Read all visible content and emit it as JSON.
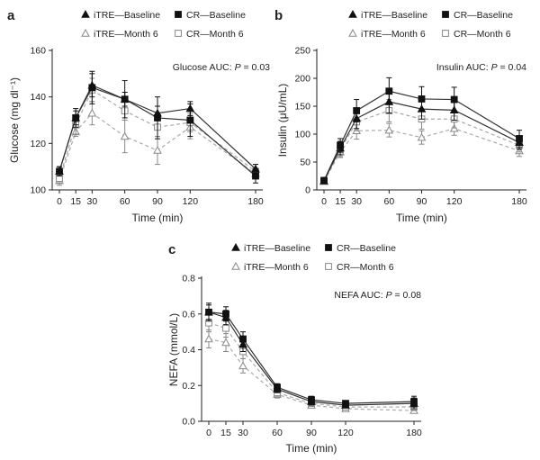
{
  "chart_data": [
    {
      "type": "line",
      "panel": "a",
      "auc_prefix": "Glucose AUC: ",
      "auc_p_symbol": "P",
      "auc_p_value": " = 0.03",
      "ylabel": "Glucose (mg dl⁻¹)",
      "xlabel": "Time (min)",
      "x": [
        0,
        15,
        30,
        60,
        90,
        120,
        180
      ],
      "ylim": [
        100,
        160
      ],
      "yticks": [
        100,
        120,
        140,
        160
      ],
      "legend": {
        "iTRE_baseline": "iTRE—Baseline",
        "CR_baseline": "CR—Baseline",
        "iTRE_month6": "iTRE—Month 6",
        "CR_month6": "CR—Month 6"
      },
      "series": [
        {
          "name": "iTRE—Baseline",
          "values": [
            108,
            131,
            145,
            139,
            133,
            135,
            109
          ],
          "err": [
            2,
            3,
            5,
            3,
            3,
            3,
            2
          ]
        },
        {
          "name": "CR—Baseline",
          "values": [
            108,
            131,
            144,
            139,
            131,
            130,
            106
          ],
          "err": [
            2,
            4,
            7,
            8,
            9,
            7,
            3
          ]
        },
        {
          "name": "iTRE—Month 6",
          "values": [
            104,
            125,
            133,
            123,
            117,
            127,
            107
          ],
          "err": [
            2,
            2,
            5,
            7,
            6,
            5,
            2
          ]
        },
        {
          "name": "CR—Month 6",
          "values": [
            105,
            128,
            143,
            134,
            127,
            129,
            108
          ],
          "err": [
            2,
            4,
            5,
            4,
            4,
            4,
            3
          ]
        }
      ]
    },
    {
      "type": "line",
      "panel": "b",
      "auc_prefix": "Insulin AUC: ",
      "auc_p_symbol": "P",
      "auc_p_value": " = 0.04",
      "ylabel": "Insulin (μU/mL)",
      "xlabel": "Time (min)",
      "x": [
        0,
        15,
        30,
        60,
        90,
        120,
        180
      ],
      "ylim": [
        0,
        250
      ],
      "yticks": [
        0,
        50,
        100,
        150,
        200,
        250
      ],
      "legend": {
        "iTRE_baseline": "iTRE—Baseline",
        "CR_baseline": "CR—Baseline",
        "iTRE_month6": "iTRE—Month 6",
        "CR_month6": "CR—Month 6"
      },
      "series": [
        {
          "name": "iTRE—Baseline",
          "values": [
            16,
            75,
            128,
            158,
            145,
            143,
            85
          ],
          "err": [
            3,
            12,
            18,
            20,
            18,
            18,
            12
          ]
        },
        {
          "name": "CR—Baseline",
          "values": [
            17,
            80,
            142,
            177,
            163,
            162,
            92
          ],
          "err": [
            3,
            12,
            20,
            24,
            22,
            22,
            15
          ]
        },
        {
          "name": "iTRE—Month 6",
          "values": [
            15,
            68,
            106,
            107,
            94,
            110,
            70
          ],
          "err": [
            3,
            10,
            15,
            12,
            12,
            12,
            10
          ]
        },
        {
          "name": "CR—Month 6",
          "values": [
            16,
            72,
            122,
            142,
            127,
            127,
            80
          ],
          "err": [
            3,
            12,
            16,
            20,
            18,
            16,
            12
          ]
        }
      ]
    },
    {
      "type": "line",
      "panel": "c",
      "auc_prefix": "NEFA AUC: ",
      "auc_p_symbol": "P",
      "auc_p_value": " = 0.08",
      "ylabel": "NEFA (mmol/L)",
      "xlabel": "Time (min)",
      "x": [
        0,
        15,
        30,
        60,
        90,
        120,
        180
      ],
      "ylim": [
        0,
        0.8
      ],
      "yticks": [
        0,
        0.2,
        0.4,
        0.6,
        0.8
      ],
      "legend": {
        "iTRE_baseline": "iTRE—Baseline",
        "CR_baseline": "CR—Baseline",
        "iTRE_month6": "iTRE—Month 6",
        "CR_month6": "CR—Month 6"
      },
      "series": [
        {
          "name": "iTRE—Baseline",
          "values": [
            0.61,
            0.58,
            0.43,
            0.18,
            0.11,
            0.09,
            0.1
          ],
          "err": [
            0.04,
            0.04,
            0.04,
            0.02,
            0.02,
            0.01,
            0.03
          ]
        },
        {
          "name": "CR—Baseline",
          "values": [
            0.61,
            0.6,
            0.46,
            0.19,
            0.12,
            0.1,
            0.11
          ],
          "err": [
            0.05,
            0.04,
            0.04,
            0.02,
            0.02,
            0.01,
            0.03
          ]
        },
        {
          "name": "iTRE—Month 6",
          "values": [
            0.46,
            0.44,
            0.31,
            0.15,
            0.09,
            0.07,
            0.06
          ],
          "err": [
            0.05,
            0.05,
            0.04,
            0.02,
            0.01,
            0.01,
            0.01
          ]
        },
        {
          "name": "CR—Month 6",
          "values": [
            0.55,
            0.52,
            0.39,
            0.16,
            0.1,
            0.08,
            0.08
          ],
          "err": [
            0.05,
            0.05,
            0.04,
            0.02,
            0.01,
            0.01,
            0.02
          ]
        }
      ]
    }
  ]
}
